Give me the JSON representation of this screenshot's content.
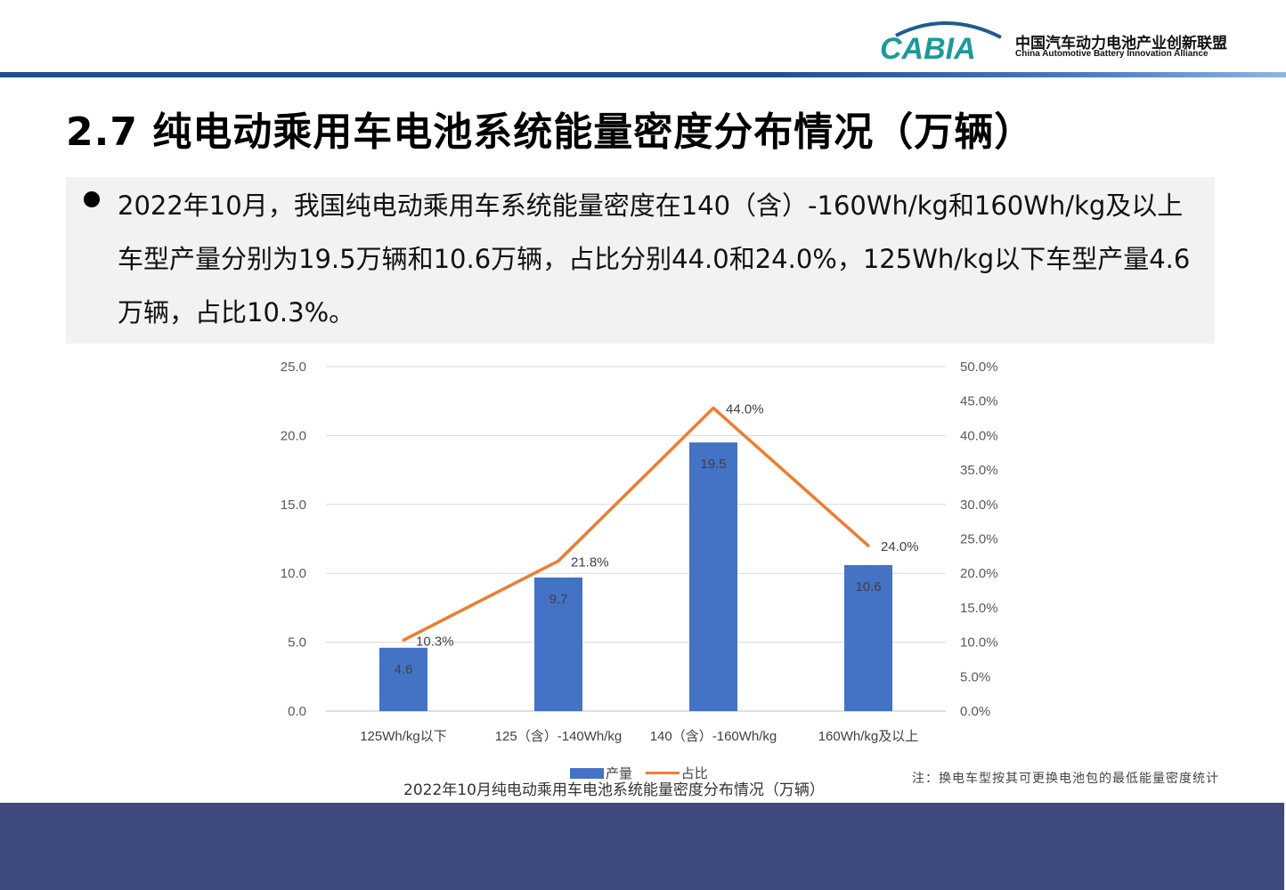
{
  "header": {
    "logo_text": "CABIA",
    "org_name_cn": "中国汽车动力电池产业创新联盟",
    "org_name_en": "China Automotive Battery Innovation Alliance"
  },
  "page_title": "2.7 纯电动乘用车电池系统能量密度分布情况（万辆）",
  "summary": "2022年10月，我国纯电动乘用车系统能量密度在140（含）-160Wh/kg和160Wh/kg及以上车型产量分别为19.5万辆和10.6万辆，占比分别44.0和24.0%，125Wh/kg以下车型产量4.6万辆，占比10.3%。",
  "chart_data": {
    "type": "bar",
    "title": "2022年10月纯电动乘用车电池系统能量密度分布情况（万辆）",
    "categories": [
      "125Wh/kg以下",
      "125（含）-140Wh/kg",
      "140（含）-160Wh/kg",
      "160Wh/kg及以上"
    ],
    "series": [
      {
        "name": "产量",
        "type": "bar",
        "axis": "left",
        "color": "#4472c4",
        "values": [
          4.6,
          9.7,
          19.5,
          10.6
        ],
        "labels": [
          "4.6",
          "9.7",
          "19.5",
          "10.6"
        ]
      },
      {
        "name": "占比",
        "type": "line",
        "axis": "right",
        "color": "#ed7d31",
        "values": [
          10.3,
          21.8,
          44.0,
          24.0
        ],
        "labels": [
          "10.3%",
          "21.8%",
          "44.0%",
          "24.0%"
        ]
      }
    ],
    "y_left": {
      "lim": [
        0,
        25
      ],
      "ticks": [
        "0.0",
        "5.0",
        "10.0",
        "15.0",
        "20.0",
        "25.0"
      ]
    },
    "y_right": {
      "lim": [
        0,
        50
      ],
      "ticks": [
        "0.0%",
        "5.0%",
        "10.0%",
        "15.0%",
        "20.0%",
        "25.0%",
        "30.0%",
        "35.0%",
        "40.0%",
        "45.0%",
        "50.0%"
      ]
    },
    "grid": true,
    "legend_position": "bottom"
  },
  "note": "注：换电车型按其可更换电池包的最低能量密度统计",
  "colors": {
    "header_bar": "#1f4f8f",
    "footer": "#3e4a7e",
    "bar": "#4472c4",
    "line": "#ed7d31"
  }
}
